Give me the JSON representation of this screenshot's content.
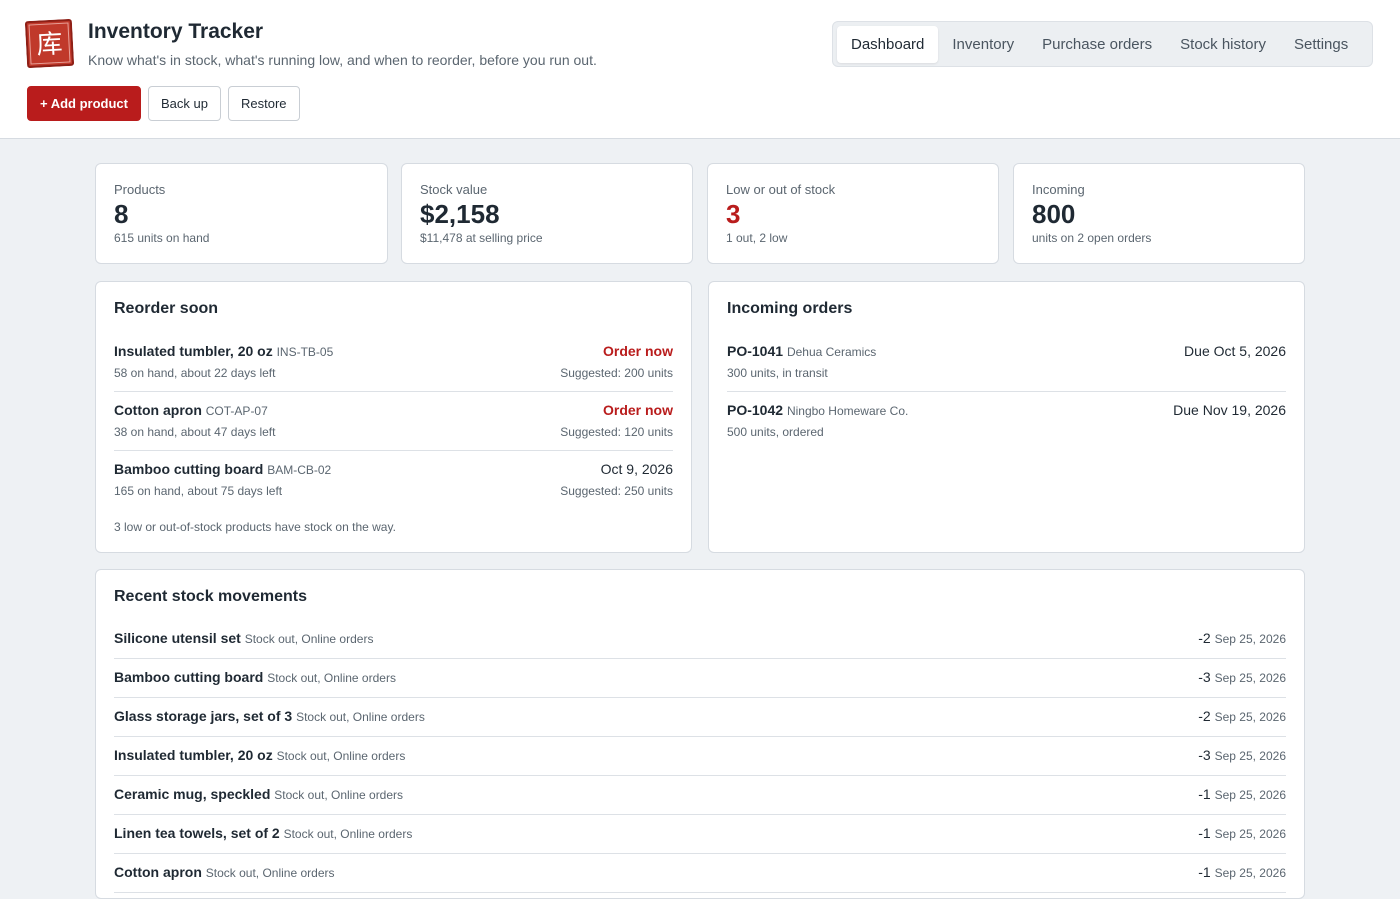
{
  "app": {
    "title": "Inventory Tracker",
    "subtitle": "Know what's in stock, what's running low, and when to reorder, before you run out.",
    "logo_glyph": "库"
  },
  "colors": {
    "accent": "#b91c1c",
    "page_bg": "#eef1f4",
    "card_border": "#d6dbe1"
  },
  "actions": {
    "add": "+ Add product",
    "backup": "Back up",
    "restore": "Restore"
  },
  "nav": {
    "tabs": [
      "Dashboard",
      "Inventory",
      "Purchase orders",
      "Stock history",
      "Settings"
    ],
    "active": "Dashboard"
  },
  "stats": [
    {
      "label": "Products",
      "value": "8",
      "sub": "615 units on hand"
    },
    {
      "label": "Stock value",
      "value": "$2,158",
      "sub": "$11,478 at selling price"
    },
    {
      "label": "Low or out of stock",
      "value": "3",
      "sub": "1 out, 2 low",
      "alert": true
    },
    {
      "label": "Incoming",
      "value": "800",
      "sub": "units on 2 open orders"
    }
  ],
  "reorder": {
    "title": "Reorder soon",
    "items": [
      {
        "name": "Insulated tumbler, 20 oz",
        "sku": "INS-TB-05",
        "detail": "58 on hand, about 22 days left",
        "status": "Order now",
        "urgent": true,
        "suggested": "Suggested: 200 units"
      },
      {
        "name": "Cotton apron",
        "sku": "COT-AP-07",
        "detail": "38 on hand, about 47 days left",
        "status": "Order now",
        "urgent": true,
        "suggested": "Suggested: 120 units"
      },
      {
        "name": "Bamboo cutting board",
        "sku": "BAM-CB-02",
        "detail": "165 on hand, about 75 days left",
        "status": "Oct 9, 2026",
        "urgent": false,
        "suggested": "Suggested: 250 units"
      }
    ],
    "note": "3 low or out-of-stock products have stock on the way."
  },
  "incoming": {
    "title": "Incoming orders",
    "orders": [
      {
        "po": "PO-1041",
        "supplier": "Dehua Ceramics",
        "detail": "300 units, in transit",
        "due": "Due Oct 5, 2026"
      },
      {
        "po": "PO-1042",
        "supplier": "Ningbo Homeware Co.",
        "detail": "500 units, ordered",
        "due": "Due Nov 19, 2026"
      }
    ]
  },
  "movements": {
    "title": "Recent stock movements",
    "items": [
      {
        "name": "Silicone utensil set",
        "detail": "Stock out, Online orders",
        "qty": "-2",
        "date": "Sep 25, 2026"
      },
      {
        "name": "Bamboo cutting board",
        "detail": "Stock out, Online orders",
        "qty": "-3",
        "date": "Sep 25, 2026"
      },
      {
        "name": "Glass storage jars, set of 3",
        "detail": "Stock out, Online orders",
        "qty": "-2",
        "date": "Sep 25, 2026"
      },
      {
        "name": "Insulated tumbler, 20 oz",
        "detail": "Stock out, Online orders",
        "qty": "-3",
        "date": "Sep 25, 2026"
      },
      {
        "name": "Ceramic mug, speckled",
        "detail": "Stock out, Online orders",
        "qty": "-1",
        "date": "Sep 25, 2026"
      },
      {
        "name": "Linen tea towels, set of 2",
        "detail": "Stock out, Online orders",
        "qty": "-1",
        "date": "Sep 25, 2026"
      },
      {
        "name": "Cotton apron",
        "detail": "Stock out, Online orders",
        "qty": "-1",
        "date": "Sep 25, 2026"
      }
    ]
  }
}
